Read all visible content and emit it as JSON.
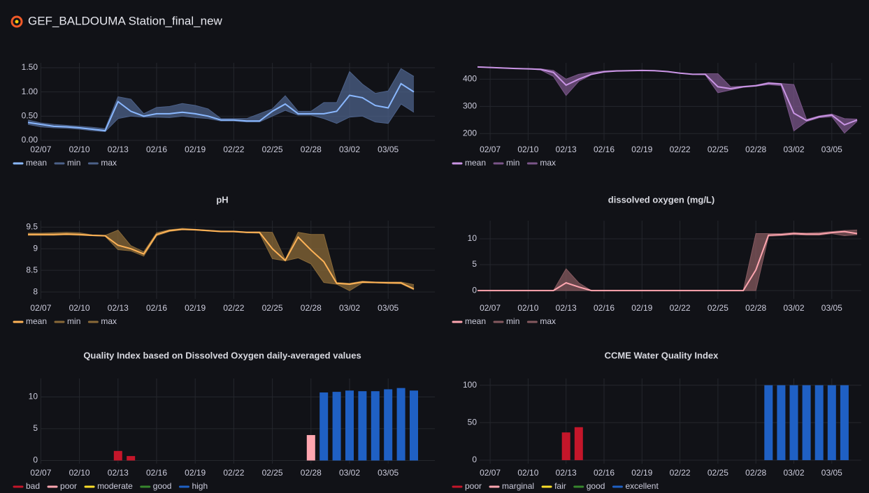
{
  "header": {
    "title": "GEF_BALDOUMA Station_final_new"
  },
  "chart_data": [
    {
      "type": "line",
      "categories": [
        null,
        "02/07",
        null,
        null,
        "02/10",
        null,
        null,
        "02/13",
        null,
        null,
        "02/16",
        null,
        null,
        "02/19",
        null,
        null,
        "02/22",
        null,
        null,
        "02/25",
        null,
        null,
        "02/28",
        null,
        null,
        "03/02",
        null,
        null,
        "03/05",
        null,
        null
      ],
      "series": [
        {
          "name": "mean",
          "color": "#8ab8ff",
          "values": [
            0.37,
            0.33,
            0.29,
            0.28,
            0.26,
            0.23,
            0.2,
            0.8,
            0.6,
            0.5,
            0.55,
            0.55,
            0.58,
            0.55,
            0.5,
            0.42,
            0.42,
            0.4,
            0.4,
            0.6,
            0.75,
            0.55,
            0.55,
            0.55,
            0.6,
            0.93,
            0.88,
            0.72,
            0.67,
            1.17,
            1.0
          ]
        },
        {
          "name": "min",
          "color": "#4c6189",
          "values": [
            0.33,
            0.28,
            0.26,
            0.25,
            0.23,
            0.2,
            0.18,
            0.45,
            0.5,
            0.48,
            0.48,
            0.47,
            0.5,
            0.47,
            0.45,
            0.4,
            0.4,
            0.38,
            0.38,
            0.5,
            0.62,
            0.52,
            0.52,
            0.45,
            0.35,
            0.48,
            0.5,
            0.38,
            0.35,
            0.75,
            0.58
          ]
        },
        {
          "name": "max",
          "color": "#4c6189",
          "values": [
            0.42,
            0.36,
            0.33,
            0.31,
            0.29,
            0.27,
            0.24,
            0.9,
            0.85,
            0.55,
            0.68,
            0.7,
            0.76,
            0.72,
            0.65,
            0.45,
            0.45,
            0.45,
            0.55,
            0.65,
            0.92,
            0.6,
            0.6,
            0.78,
            0.78,
            1.42,
            1.16,
            0.97,
            1.02,
            1.48,
            1.32
          ]
        }
      ],
      "ylim": [
        0,
        1.6
      ],
      "yticks": [
        {
          "value": 0,
          "label": "0.00"
        },
        {
          "value": 0.5,
          "label": "0.50"
        },
        {
          "value": 1,
          "label": "1.00"
        },
        {
          "value": 1.5,
          "label": "1.50"
        }
      ],
      "grid": true
    },
    {
      "type": "line",
      "categories": [
        null,
        "02/07",
        null,
        null,
        "02/10",
        null,
        null,
        "02/13",
        null,
        null,
        "02/16",
        null,
        null,
        "02/19",
        null,
        null,
        "02/22",
        null,
        null,
        "02/25",
        null,
        null,
        "02/28",
        null,
        null,
        "03/02",
        null,
        null,
        "03/05",
        null,
        null
      ],
      "series": [
        {
          "name": "mean",
          "color": "#ca95e5",
          "values": [
            445,
            443,
            441,
            439,
            438,
            436,
            425,
            378,
            400,
            418,
            427,
            430,
            431,
            432,
            431,
            428,
            422,
            418,
            418,
            372,
            365,
            372,
            376,
            385,
            382,
            275,
            248,
            262,
            268,
            232,
            250
          ]
        },
        {
          "name": "min",
          "color": "#7a5589",
          "values": [
            445,
            443,
            441,
            439,
            438,
            434,
            410,
            340,
            392,
            416,
            426,
            430,
            431,
            432,
            431,
            428,
            422,
            418,
            416,
            350,
            360,
            370,
            374,
            380,
            376,
            210,
            244,
            258,
            262,
            202,
            245
          ]
        },
        {
          "name": "max",
          "color": "#7a5589",
          "values": [
            446,
            444,
            442,
            440,
            439,
            438,
            432,
            400,
            418,
            425,
            430,
            432,
            432,
            433,
            432,
            429,
            423,
            419,
            420,
            420,
            372,
            374,
            378,
            388,
            384,
            380,
            252,
            265,
            272,
            255,
            253
          ]
        }
      ],
      "ylim": [
        175,
        460
      ],
      "yticks": [
        200,
        300,
        400
      ],
      "grid": true
    },
    {
      "type": "line",
      "title": "pH",
      "categories": [
        null,
        "02/07",
        null,
        null,
        "02/10",
        null,
        null,
        "02/13",
        null,
        null,
        "02/16",
        null,
        null,
        "02/19",
        null,
        null,
        "02/22",
        null,
        null,
        "02/25",
        null,
        null,
        "02/28",
        null,
        null,
        "03/02",
        null,
        null,
        "03/05",
        null,
        null
      ],
      "series": [
        {
          "name": "mean",
          "color": "#ffb357",
          "values": [
            9.33,
            9.33,
            9.33,
            9.34,
            9.33,
            9.31,
            9.3,
            9.08,
            9.0,
            8.88,
            9.33,
            9.42,
            9.45,
            9.44,
            9.42,
            9.4,
            9.4,
            9.38,
            9.38,
            9.0,
            8.73,
            9.27,
            8.97,
            8.7,
            8.2,
            8.18,
            8.23,
            8.22,
            8.21,
            8.21,
            8.07
          ]
        },
        {
          "name": "min",
          "color": "#8a6a38",
          "values": [
            9.31,
            9.31,
            9.31,
            9.32,
            9.31,
            9.3,
            9.29,
            8.98,
            8.95,
            8.83,
            9.3,
            9.4,
            9.44,
            9.43,
            9.41,
            9.39,
            9.39,
            9.37,
            9.36,
            8.77,
            8.72,
            8.79,
            8.65,
            8.22,
            8.18,
            8.03,
            8.21,
            8.21,
            8.2,
            8.19,
            8.05
          ]
        },
        {
          "name": "max",
          "color": "#8a6a38",
          "values": [
            9.36,
            9.36,
            9.37,
            9.38,
            9.37,
            9.32,
            9.31,
            9.43,
            9.07,
            8.93,
            9.37,
            9.44,
            9.47,
            9.45,
            9.43,
            9.41,
            9.41,
            9.39,
            9.39,
            9.38,
            8.75,
            9.38,
            9.33,
            9.33,
            8.22,
            8.2,
            8.25,
            8.23,
            8.23,
            8.23,
            8.17
          ]
        }
      ],
      "ylim": [
        7.84,
        9.65
      ],
      "yticks": [
        8,
        8.5,
        9,
        9.5
      ],
      "grid": true
    },
    {
      "type": "line",
      "title": "dissolved oxygen (mg/L)",
      "categories": [
        null,
        "02/07",
        null,
        null,
        "02/10",
        null,
        null,
        "02/13",
        null,
        null,
        "02/16",
        null,
        null,
        "02/19",
        null,
        null,
        "02/22",
        null,
        null,
        "02/25",
        null,
        null,
        "02/28",
        null,
        null,
        "03/02",
        null,
        null,
        "03/05",
        null,
        null
      ],
      "series": [
        {
          "name": "mean",
          "color": "#ffa6b0",
          "values": [
            0,
            0,
            0,
            0,
            0,
            0,
            0,
            1.5,
            0.7,
            0,
            0,
            0,
            0,
            0,
            0,
            0,
            0,
            0,
            0,
            0,
            0,
            0,
            4,
            10.7,
            10.8,
            11,
            10.9,
            10.9,
            11.2,
            11.4,
            11
          ]
        },
        {
          "name": "min",
          "color": "#85595f",
          "values": [
            0,
            0,
            0,
            0,
            0,
            0,
            0,
            0,
            0,
            0,
            0,
            0,
            0,
            0,
            0,
            0,
            0,
            0,
            0,
            0,
            0,
            0,
            0,
            10.5,
            10.6,
            10.8,
            10.7,
            10.7,
            11,
            10.6,
            10.8
          ]
        },
        {
          "name": "max",
          "color": "#85595f",
          "values": [
            0,
            0,
            0,
            0,
            0,
            0,
            0,
            4.2,
            1.5,
            0,
            0,
            0,
            0,
            0,
            0,
            0,
            0,
            0,
            0,
            0,
            0,
            0,
            11,
            11,
            11,
            11.2,
            11.1,
            11.2,
            11.4,
            11.6,
            11.7
          ]
        }
      ],
      "ylim": [
        -1.6,
        13.5
      ],
      "yticks": [
        0,
        5,
        10
      ],
      "grid": true
    },
    {
      "type": "bar",
      "title": "Quality Index based on Dissolved Oxygen daily-averaged values",
      "categories": [
        null,
        "02/07",
        null,
        null,
        "02/10",
        null,
        null,
        "02/13",
        null,
        null,
        "02/16",
        null,
        null,
        "02/19",
        null,
        null,
        "02/22",
        null,
        null,
        "02/25",
        null,
        null,
        "02/28",
        null,
        null,
        "03/02",
        null,
        null,
        "03/05",
        null,
        null
      ],
      "series": [
        {
          "name": "bad",
          "color": "#c4162a",
          "values": [
            null,
            null,
            null,
            null,
            null,
            null,
            null,
            1.5,
            0.7,
            null,
            null,
            null,
            null,
            null,
            null,
            null,
            null,
            null,
            null,
            null,
            null,
            null,
            null,
            null,
            null,
            null,
            null,
            null,
            null,
            null,
            null
          ]
        },
        {
          "name": "poor",
          "color": "#ffa6b0",
          "values": [
            null,
            null,
            null,
            null,
            null,
            null,
            null,
            null,
            null,
            null,
            null,
            null,
            null,
            null,
            null,
            null,
            null,
            null,
            null,
            null,
            null,
            null,
            4,
            null,
            null,
            null,
            null,
            null,
            null,
            null,
            null
          ]
        },
        {
          "name": "moderate",
          "color": "#fade2a",
          "values": [
            null,
            null,
            null,
            null,
            null,
            null,
            null,
            null,
            null,
            null,
            null,
            null,
            null,
            null,
            null,
            null,
            null,
            null,
            null,
            null,
            null,
            null,
            null,
            null,
            null,
            null,
            null,
            null,
            null,
            null,
            null
          ]
        },
        {
          "name": "good",
          "color": "#37872d",
          "values": [
            null,
            null,
            null,
            null,
            null,
            null,
            null,
            null,
            null,
            null,
            null,
            null,
            null,
            null,
            null,
            null,
            null,
            null,
            null,
            null,
            null,
            null,
            null,
            null,
            null,
            null,
            null,
            null,
            null,
            null,
            null
          ]
        },
        {
          "name": "high",
          "color": "#1f60c4",
          "values": [
            null,
            null,
            null,
            null,
            null,
            null,
            null,
            null,
            null,
            null,
            null,
            null,
            null,
            null,
            null,
            null,
            null,
            null,
            null,
            null,
            null,
            null,
            null,
            10.7,
            10.8,
            11,
            10.9,
            10.9,
            11.2,
            11.4,
            11
          ]
        }
      ],
      "ylim": [
        -0.5,
        12.9
      ],
      "yticks": [
        0,
        5,
        10
      ],
      "grid": true
    },
    {
      "type": "bar",
      "title": "CCME Water Quality Index",
      "categories": [
        null,
        "02/07",
        null,
        null,
        "02/10",
        null,
        null,
        "02/13",
        null,
        null,
        "02/16",
        null,
        null,
        "02/19",
        null,
        null,
        "02/22",
        null,
        null,
        "02/25",
        null,
        null,
        "02/28",
        null,
        null,
        "03/02",
        null,
        null,
        "03/05",
        null,
        null
      ],
      "series": [
        {
          "name": "poor",
          "color": "#c4162a",
          "values": [
            null,
            null,
            null,
            null,
            null,
            null,
            null,
            37,
            44,
            null,
            null,
            null,
            null,
            null,
            null,
            null,
            null,
            null,
            null,
            null,
            null,
            null,
            null,
            null,
            null,
            null,
            null,
            null,
            null,
            null,
            null
          ]
        },
        {
          "name": "marginal",
          "color": "#ffa6b0",
          "values": [
            null,
            null,
            null,
            null,
            null,
            null,
            null,
            null,
            null,
            null,
            null,
            null,
            null,
            null,
            null,
            null,
            null,
            null,
            null,
            null,
            null,
            null,
            null,
            null,
            null,
            null,
            null,
            null,
            null,
            null,
            null
          ]
        },
        {
          "name": "fair",
          "color": "#fade2a",
          "values": [
            null,
            null,
            null,
            null,
            null,
            null,
            null,
            null,
            null,
            null,
            null,
            null,
            null,
            null,
            null,
            null,
            null,
            null,
            null,
            null,
            null,
            null,
            null,
            null,
            null,
            null,
            null,
            null,
            null,
            null,
            null
          ]
        },
        {
          "name": "good",
          "color": "#37872d",
          "values": [
            null,
            null,
            null,
            null,
            null,
            null,
            null,
            null,
            null,
            null,
            null,
            null,
            null,
            null,
            null,
            null,
            null,
            null,
            null,
            null,
            null,
            null,
            null,
            null,
            null,
            null,
            null,
            null,
            null,
            null,
            null
          ]
        },
        {
          "name": "excellent",
          "color": "#1f60c4",
          "values": [
            null,
            null,
            null,
            null,
            null,
            null,
            null,
            null,
            null,
            null,
            null,
            null,
            null,
            null,
            null,
            null,
            null,
            null,
            null,
            null,
            null,
            null,
            null,
            100,
            100,
            100,
            100,
            100,
            100,
            100,
            null
          ]
        }
      ],
      "ylim": [
        -4.7,
        109
      ],
      "yticks": [
        0,
        50,
        100
      ],
      "grid": true
    }
  ]
}
